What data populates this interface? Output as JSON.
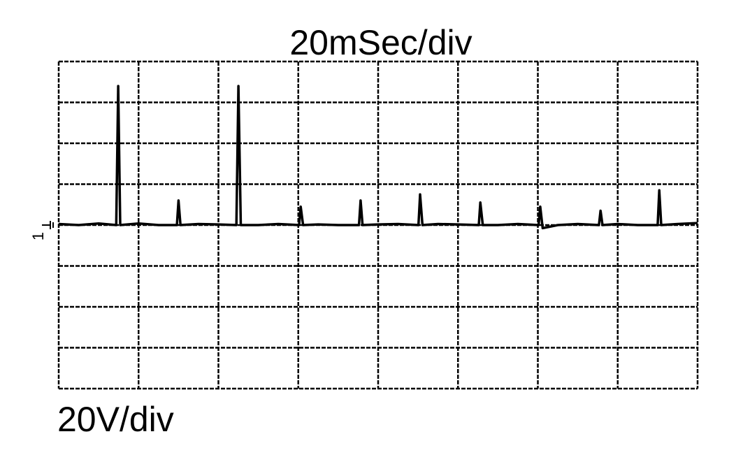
{
  "chart_data": {
    "type": "line",
    "title": "20mSec/div",
    "y_scale_label": "20V/div",
    "channel_marker": "1",
    "x": [
      0,
      5,
      10,
      14.4,
      14.9,
      15.4,
      20,
      25,
      29.6,
      30,
      30.5,
      35,
      40,
      44.5,
      45,
      45.6,
      50,
      55,
      60.2,
      60.6,
      61.2,
      65,
      70,
      75.2,
      75.6,
      76.1,
      80,
      85,
      90.1,
      90.5,
      91.1,
      95,
      100,
      105.2,
      105.6,
      106.2,
      110,
      115,
      120.2,
      120.6,
      121.2,
      125,
      130,
      135.3,
      135.7,
      136.2,
      140,
      145,
      150,
      150.4,
      150.9,
      155,
      160
    ],
    "values": [
      0.5,
      0,
      0.8,
      0,
      68,
      0,
      0.8,
      0,
      0,
      12,
      0,
      0.5,
      0.3,
      0,
      68,
      0,
      0,
      0.5,
      0,
      9,
      0,
      0.3,
      0,
      0,
      12,
      0,
      0.3,
      0.5,
      0,
      15,
      0,
      0.5,
      0.3,
      0,
      11,
      0,
      0,
      0.5,
      0,
      9,
      -1.5,
      0,
      0.5,
      0,
      7,
      0,
      0.5,
      0,
      0,
      17,
      0,
      0.5,
      1
    ],
    "color": "#000000",
    "xlim": [
      0,
      160
    ],
    "xticks": [
      0,
      20,
      40,
      60,
      80,
      100,
      120,
      140,
      160
    ],
    "ylim": [
      -80,
      80
    ],
    "yticks": [
      -80,
      -60,
      -40,
      -20,
      0,
      20,
      40,
      60,
      80
    ],
    "grid": true,
    "tick_labels": false
  }
}
